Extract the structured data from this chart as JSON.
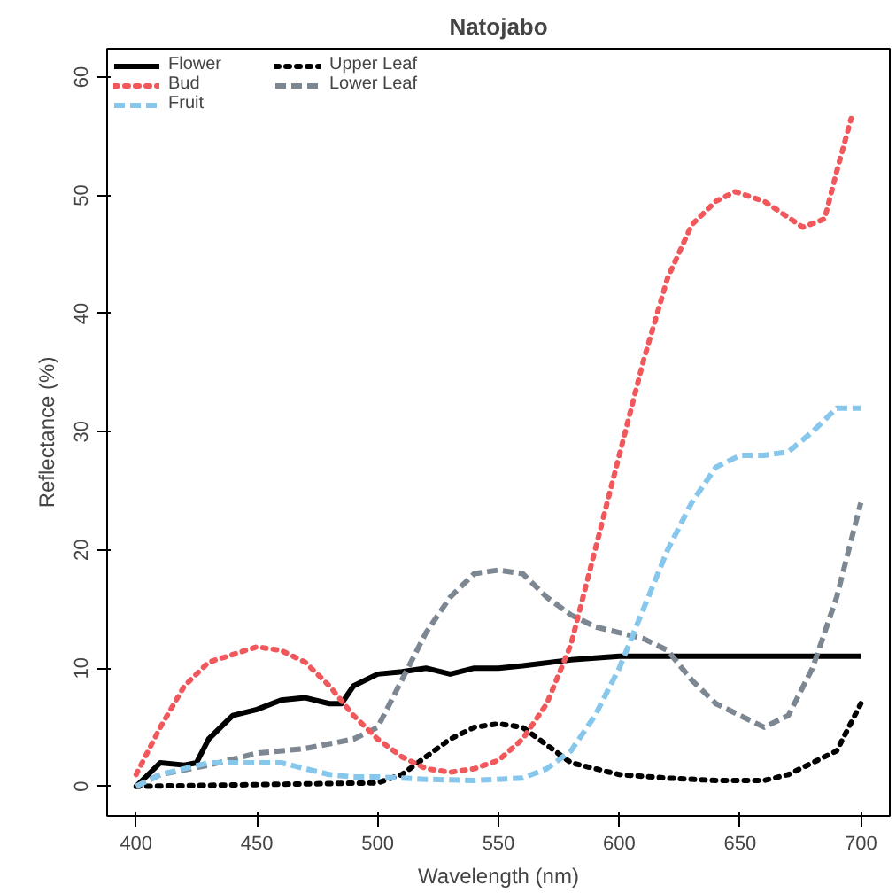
{
  "chart_data": {
    "type": "line",
    "title": "Natojabo",
    "xlabel": "Wavelength (nm)",
    "ylabel": "Reflectance (%)",
    "xlim": [
      388,
      712
    ],
    "ylim": [
      -2.5,
      62.4
    ],
    "xticks": [
      400,
      450,
      500,
      550,
      600,
      650,
      700
    ],
    "yticks": [
      0,
      10,
      20,
      30,
      40,
      50,
      60
    ],
    "grid": false,
    "legend": "top left",
    "series": [
      {
        "name": "Flower",
        "color": "#000000",
        "line_style": "solid",
        "x": [
          400,
          405,
          410,
          420,
          425,
          430,
          440,
          450,
          460,
          470,
          480,
          485,
          490,
          500,
          510,
          520,
          530,
          540,
          550,
          560,
          580,
          600,
          650,
          700
        ],
        "values": [
          0,
          1,
          2,
          1.8,
          2,
          4,
          6,
          6.5,
          7.3,
          7.5,
          7,
          7,
          8.5,
          9.5,
          9.7,
          10,
          9.5,
          10,
          10,
          10.2,
          10.7,
          11,
          11,
          11
        ]
      },
      {
        "name": "Bud",
        "color": "#f0585c",
        "line_style": "dotted",
        "x": [
          400,
          410,
          420,
          430,
          450,
          460,
          470,
          480,
          490,
          500,
          510,
          520,
          530,
          540,
          550,
          560,
          570,
          580,
          590,
          600,
          610,
          620,
          630,
          640,
          648,
          660,
          676,
          685,
          690,
          696
        ],
        "values": [
          1,
          5,
          8.5,
          10.5,
          11.8,
          11.5,
          10.5,
          8.5,
          6,
          4,
          2.5,
          1.5,
          1.2,
          1.5,
          2.2,
          4,
          7,
          12,
          20,
          28,
          36,
          43,
          47.5,
          49.5,
          50.3,
          49.5,
          47.3,
          48,
          52,
          56.5
        ]
      },
      {
        "name": "Fruit",
        "color": "#87c7ec",
        "line_style": "dashed",
        "x": [
          400,
          410,
          420,
          430,
          450,
          460,
          470,
          480,
          490,
          500,
          520,
          540,
          560,
          570,
          580,
          590,
          600,
          610,
          620,
          630,
          640,
          650,
          660,
          670,
          680,
          690,
          700
        ],
        "values": [
          0,
          1,
          1.5,
          2,
          2,
          2,
          1.5,
          1,
          0.8,
          0.8,
          0.6,
          0.5,
          0.7,
          1.5,
          3,
          6,
          10,
          15,
          20,
          24,
          27,
          28,
          28,
          28.3,
          30,
          32,
          32
        ]
      },
      {
        "name": "Upper Leaf",
        "color": "#000000",
        "line_style": "dotted",
        "x": [
          400,
          500,
          510,
          520,
          530,
          540,
          550,
          560,
          570,
          580,
          590,
          600,
          620,
          640,
          660,
          670,
          680,
          690,
          700
        ],
        "values": [
          0,
          0.3,
          1,
          2.5,
          4,
          5,
          5.3,
          5,
          3.5,
          2,
          1.5,
          1,
          0.7,
          0.5,
          0.5,
          1,
          2,
          3,
          7
        ]
      },
      {
        "name": "Lower Leaf",
        "color": "#7d8791",
        "line_style": "dashed",
        "x": [
          400,
          410,
          430,
          450,
          470,
          490,
          500,
          510,
          520,
          530,
          540,
          550,
          560,
          570,
          580,
          590,
          600,
          610,
          620,
          630,
          640,
          650,
          660,
          670,
          680,
          690,
          700
        ],
        "values": [
          0,
          1,
          1.8,
          2.8,
          3.2,
          4,
          5,
          9,
          13,
          16,
          18,
          18.3,
          18,
          16,
          14.5,
          13.5,
          13,
          12.5,
          11.5,
          9,
          7,
          6,
          5,
          6,
          10,
          16,
          24
        ]
      }
    ]
  }
}
